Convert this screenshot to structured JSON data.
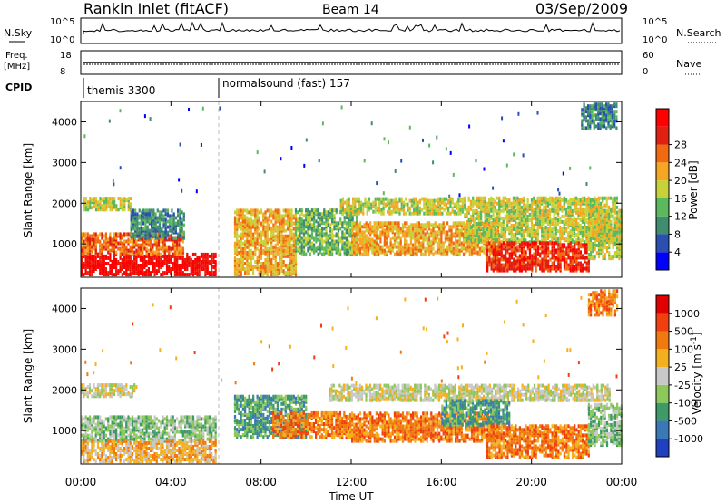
{
  "header": {
    "station": "Rankin Inlet (fitACF)",
    "beam": "Beam 14",
    "date": "03/Sep/2009"
  },
  "strip_labels": {
    "nsky": "N.Sky",
    "freq_line1": "Freq.",
    "freq_line2": "[MHz]",
    "cpid": "CPID",
    "nsearch": "N.Search",
    "nave": "Nave",
    "nsky_ticks": [
      "10^5",
      "10^0"
    ],
    "nsearch_ticks": [
      "10^5",
      "10^0"
    ],
    "freq_ticks": [
      "18",
      "8"
    ],
    "nave_ticks": [
      "60",
      "0"
    ]
  },
  "cpid_segments": [
    {
      "start_hour": 0,
      "label": "themis 3300"
    },
    {
      "start_hour": 6,
      "label": "normalsound (fast) 157"
    }
  ],
  "chart_data": [
    {
      "type": "heatmap",
      "name": "power",
      "ylabel": "Slant Range [km]",
      "xlabel": "",
      "x_ticks": [
        "00:00",
        "04:00",
        "08:00",
        "12:00",
        "16:00",
        "20:00",
        "00:00"
      ],
      "xlim_hours": [
        0,
        24
      ],
      "y_ticks": [
        "1000",
        "2000",
        "3000",
        "4000"
      ],
      "ylim_km": [
        180,
        4500
      ],
      "colorbar": {
        "label": "Power [dB]",
        "ticks": [
          "4",
          "8",
          "12",
          "16",
          "20",
          "24",
          "28"
        ],
        "colors": [
          "#0000ff",
          "#2a4fb0",
          "#3f8c6e",
          "#5cb85c",
          "#c7d23a",
          "#f5a623",
          "#f06a12",
          "#e02010",
          "#ff0000"
        ]
      },
      "regions": [
        {
          "t0": 0.0,
          "t1": 6.0,
          "r0": 200,
          "r1": 700,
          "level": 8
        },
        {
          "t0": 0.0,
          "t1": 4.5,
          "r0": 700,
          "r1": 1200,
          "level": 6
        },
        {
          "t0": 0.1,
          "t1": 2.2,
          "r0": 1800,
          "r1": 2100,
          "level": 4
        },
        {
          "t0": 2.2,
          "t1": 4.6,
          "r0": 1100,
          "r1": 1800,
          "level": 2
        },
        {
          "t0": 6.8,
          "t1": 9.5,
          "r0": 200,
          "r1": 1800,
          "level": 5
        },
        {
          "t0": 9.5,
          "t1": 12.2,
          "r0": 700,
          "r1": 1800,
          "level": 3
        },
        {
          "t0": 11.5,
          "t1": 17.0,
          "r0": 1700,
          "r1": 2100,
          "level": 4
        },
        {
          "t0": 12.0,
          "t1": 18.5,
          "r0": 700,
          "r1": 1500,
          "level": 5
        },
        {
          "t0": 17.0,
          "t1": 23.8,
          "r0": 1000,
          "r1": 2100,
          "level": 4
        },
        {
          "t0": 18.0,
          "t1": 22.5,
          "r0": 300,
          "r1": 1000,
          "level": 7
        },
        {
          "t0": 22.5,
          "t1": 24.0,
          "r0": 600,
          "r1": 1800,
          "level": 4
        },
        {
          "t0": 22.2,
          "t1": 23.8,
          "r0": 3800,
          "r1": 4400,
          "level": 2
        }
      ]
    },
    {
      "type": "heatmap",
      "name": "velocity",
      "ylabel": "Slant Range [km]",
      "xlabel": "Time UT",
      "x_ticks": [
        "00:00",
        "04:00",
        "08:00",
        "12:00",
        "16:00",
        "20:00",
        "00:00"
      ],
      "xlim_hours": [
        0,
        24
      ],
      "y_ticks": [
        "1000",
        "2000",
        "3000",
        "4000"
      ],
      "ylim_km": [
        180,
        4500
      ],
      "colorbar": {
        "label": "Velocity [m s^-1]",
        "ticks": [
          "1000",
          "500",
          "100",
          "25",
          "-25",
          "-100",
          "-500",
          "-1000"
        ],
        "colors": [
          "#2040c0",
          "#3a78b8",
          "#3e9a66",
          "#8cc85a",
          "#c8c8c8",
          "#f5b020",
          "#f07a10",
          "#f04010",
          "#e00000"
        ]
      },
      "regions": [
        {
          "t0": 0.0,
          "t1": 2.5,
          "r0": 1800,
          "r1": 2100,
          "level": 4
        },
        {
          "t0": 0.0,
          "t1": 6.0,
          "r0": 700,
          "r1": 1300,
          "level": 3
        },
        {
          "t0": 0.0,
          "t1": 6.0,
          "r0": 200,
          "r1": 700,
          "level": 5
        },
        {
          "t0": 6.8,
          "t1": 10.0,
          "r0": 800,
          "r1": 1800,
          "level": 2
        },
        {
          "t0": 8.5,
          "t1": 12.0,
          "r0": 800,
          "r1": 1400,
          "level": 6
        },
        {
          "t0": 11.0,
          "t1": 23.5,
          "r0": 1700,
          "r1": 2100,
          "level": 4
        },
        {
          "t0": 12.0,
          "t1": 18.5,
          "r0": 700,
          "r1": 1400,
          "level": 6
        },
        {
          "t0": 16.0,
          "t1": 19.0,
          "r0": 1100,
          "r1": 1700,
          "level": 2
        },
        {
          "t0": 18.0,
          "t1": 22.5,
          "r0": 300,
          "r1": 1100,
          "level": 6
        },
        {
          "t0": 22.5,
          "t1": 24.0,
          "r0": 600,
          "r1": 1600,
          "level": 3
        },
        {
          "t0": 22.5,
          "t1": 23.8,
          "r0": 3800,
          "r1": 4400,
          "level": 6
        }
      ]
    }
  ],
  "colors": {
    "axis": "#000000",
    "background": "#ffffff",
    "dashed_marker": "#bbbbbb"
  }
}
